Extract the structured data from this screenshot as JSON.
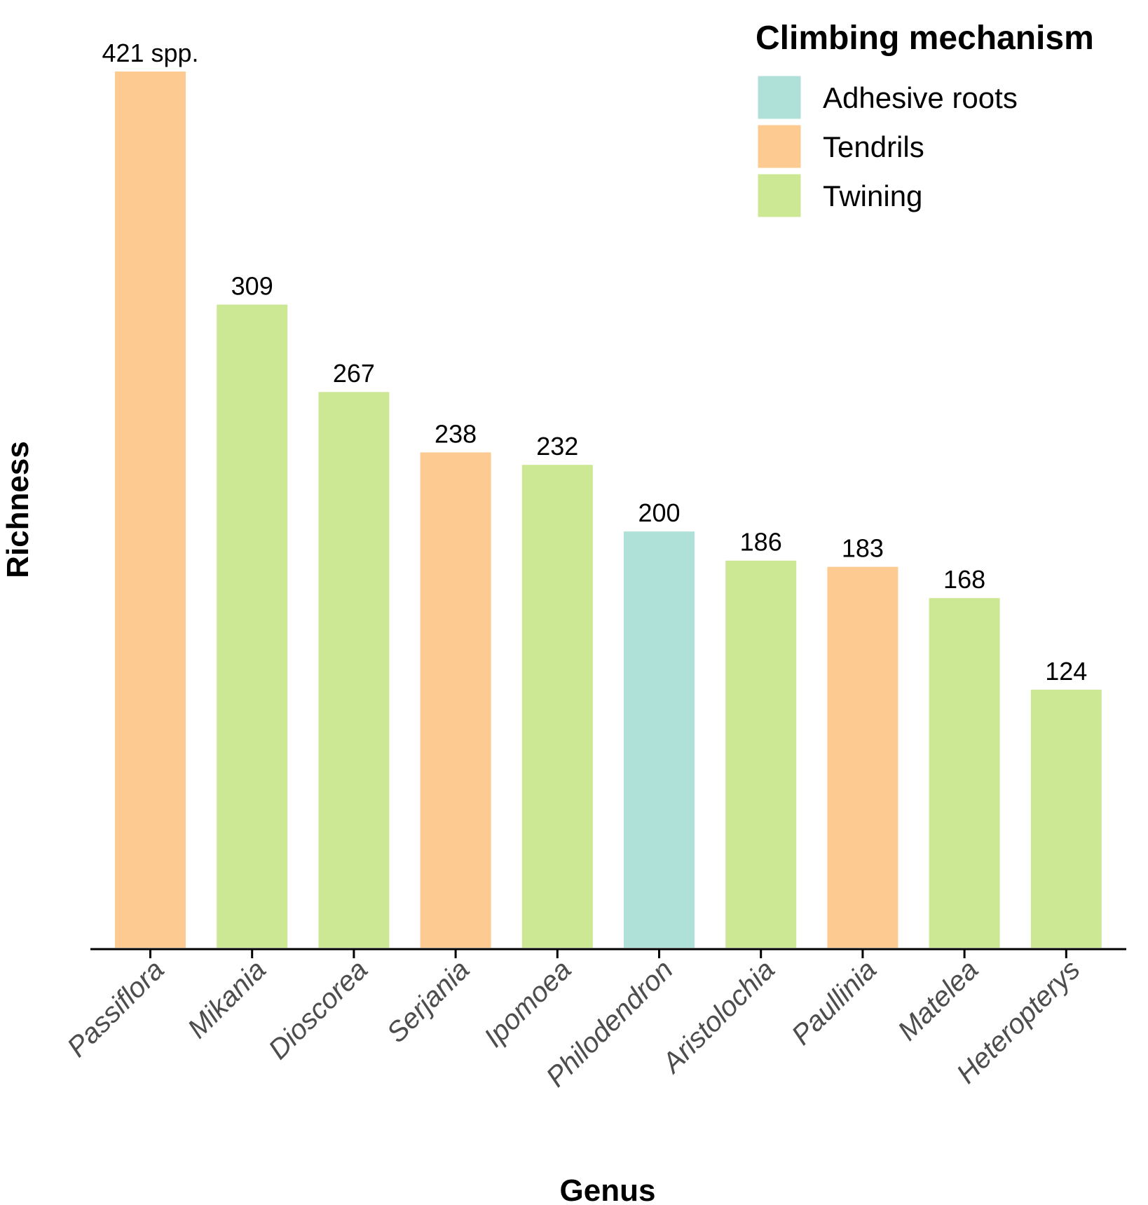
{
  "chart_data": {
    "type": "bar",
    "xlabel": "Genus",
    "ylabel": "Richness",
    "ylim": [
      0,
      421
    ],
    "grid": false,
    "legend_position": "top-right",
    "legend_title": "Climbing mechanism",
    "legend": [
      {
        "name": "Adhesive roots",
        "color": "#b0e1d9"
      },
      {
        "name": "Tendrils",
        "color": "#fdcb91"
      },
      {
        "name": "Twining",
        "color": "#cde895"
      }
    ],
    "categories": [
      "Passiflora",
      "Mikania",
      "Dioscorea",
      "Serjania",
      "Ipomoea",
      "Philodendron",
      "Aristolochia",
      "Paullinia",
      "Matelea",
      "Heteropterys"
    ],
    "values": [
      421,
      309,
      267,
      238,
      232,
      200,
      186,
      183,
      168,
      124
    ],
    "mechanism": [
      "Tendrils",
      "Twining",
      "Twining",
      "Tendrils",
      "Twining",
      "Adhesive roots",
      "Twining",
      "Tendrils",
      "Twining",
      "Twining"
    ],
    "bar_labels": [
      "421 spp.",
      "309",
      "267",
      "238",
      "232",
      "200",
      "186",
      "183",
      "168",
      "124"
    ]
  }
}
